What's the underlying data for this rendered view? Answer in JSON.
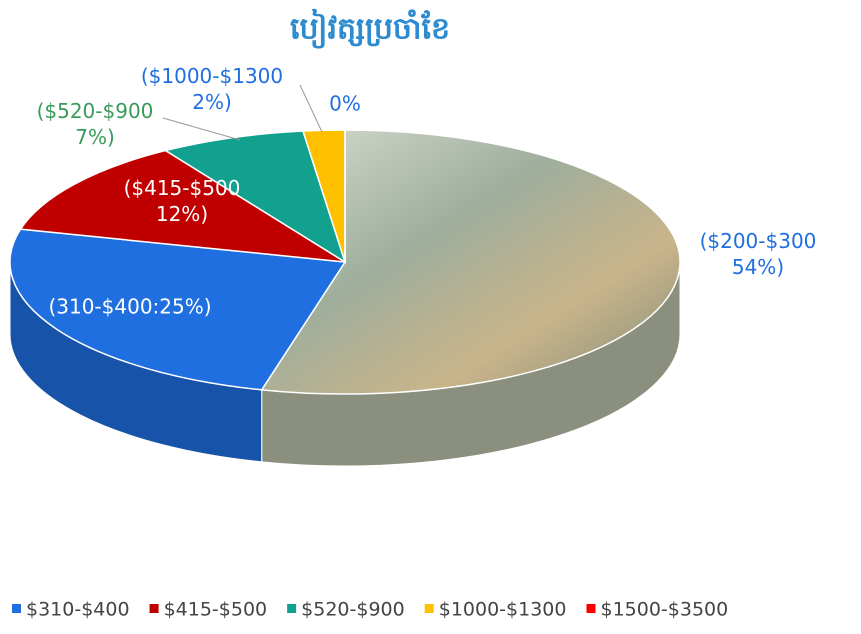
{
  "chart_data": {
    "type": "pie3d",
    "title": "បៀវត្សប្រចាំខែ",
    "categories": [
      null,
      "$310-$400",
      "$415-$500",
      "$520-$900",
      "$1000-$1300",
      "$1500-$3500"
    ],
    "values": [
      54,
      25,
      12,
      7,
      2,
      0
    ],
    "value_labels": [
      "($200-$300\n54%)",
      "(310-$400:25%)",
      "($415-$500\n12%)",
      "($520-$900\n7%)",
      "($1000-$1300\n2%)",
      "0%"
    ],
    "colors": [
      "#9fae9c",
      "#1f6fe0",
      "#c00000",
      "#12a08f",
      "#ffc000",
      "#ff0000"
    ]
  }
}
